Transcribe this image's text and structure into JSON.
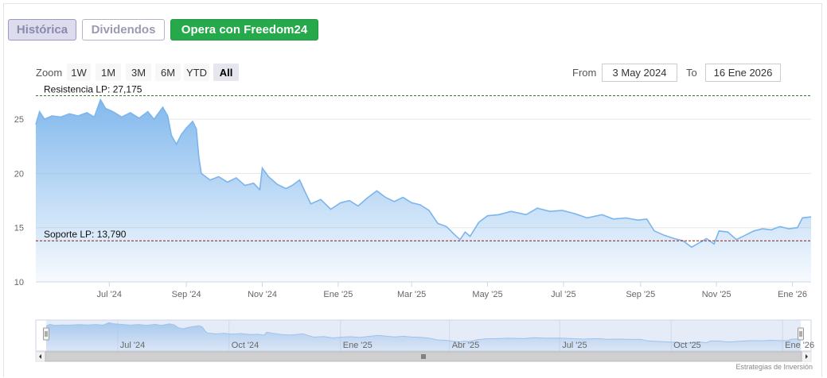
{
  "buttons": {
    "historica": "Histórica",
    "dividendos": "Dividendos",
    "opera": "Opera con Freedom24"
  },
  "zoom": {
    "label": "Zoom",
    "options": [
      "1W",
      "1M",
      "3M",
      "6M",
      "YTD",
      "All"
    ],
    "active": "All"
  },
  "range": {
    "from_label": "From",
    "from_value": "3 May 2024",
    "to_label": "To",
    "to_value": "16 Ene 2026"
  },
  "credits": "Estrategias de Inversión",
  "colors": {
    "line": "#7cb5ec",
    "resistance": "#2e7d32",
    "support": "#8b1a1a",
    "navigator_mask": "#c8d4ee"
  },
  "chart_data": {
    "type": "area",
    "x_start": "2024-05-03",
    "x_end": "2026-01-16",
    "ylim": [
      10,
      27.5
    ],
    "y_ticks": [
      10,
      15,
      20,
      25
    ],
    "x_tick_labels": [
      "Jul '24",
      "Sep '24",
      "Nov '24",
      "Ene '25",
      "Mar '25",
      "May '25",
      "Jul '25",
      "Sep '25",
      "Nov '25",
      "Ene '26"
    ],
    "x_tick_dates": [
      "2024-07-01",
      "2024-09-01",
      "2024-11-01",
      "2025-01-01",
      "2025-03-01",
      "2025-05-01",
      "2025-07-01",
      "2025-09-01",
      "2025-11-01",
      "2026-01-01"
    ],
    "navigator_labels": [
      "Jul '24",
      "Oct '24",
      "Ene '25",
      "Abr '25",
      "Jul '25",
      "Oct '25",
      "Ene '26"
    ],
    "navigator_dates": [
      "2024-07-01",
      "2024-10-01",
      "2025-01-01",
      "2025-04-01",
      "2025-07-01",
      "2025-10-01",
      "2026-01-01"
    ],
    "annotations": [
      {
        "label": "Resistencia LP: 27,175",
        "value": 27.175,
        "style": "dashed-green"
      },
      {
        "label": "Soporte LP: 13,790",
        "value": 13.79,
        "style": "dashed-darkred"
      }
    ],
    "series": [
      {
        "points": [
          [
            "2024-05-03",
            24.5
          ],
          [
            "2024-05-06",
            25.7
          ],
          [
            "2024-05-10",
            25.0
          ],
          [
            "2024-05-16",
            25.3
          ],
          [
            "2024-05-23",
            25.2
          ],
          [
            "2024-05-30",
            25.5
          ],
          [
            "2024-06-06",
            25.3
          ],
          [
            "2024-06-13",
            25.6
          ],
          [
            "2024-06-19",
            25.2
          ],
          [
            "2024-06-24",
            26.8
          ],
          [
            "2024-06-28",
            26.0
          ],
          [
            "2024-07-04",
            25.7
          ],
          [
            "2024-07-11",
            25.2
          ],
          [
            "2024-07-18",
            25.6
          ],
          [
            "2024-07-25",
            25.1
          ],
          [
            "2024-08-01",
            25.7
          ],
          [
            "2024-08-06",
            25.0
          ],
          [
            "2024-08-13",
            26.1
          ],
          [
            "2024-08-17",
            25.3
          ],
          [
            "2024-08-20",
            23.5
          ],
          [
            "2024-08-24",
            22.7
          ],
          [
            "2024-08-28",
            23.6
          ],
          [
            "2024-09-01",
            24.2
          ],
          [
            "2024-09-06",
            24.8
          ],
          [
            "2024-09-09",
            24.1
          ],
          [
            "2024-09-11",
            21.5
          ],
          [
            "2024-09-13",
            20.0
          ],
          [
            "2024-09-20",
            19.4
          ],
          [
            "2024-09-27",
            19.7
          ],
          [
            "2024-10-04",
            19.2
          ],
          [
            "2024-10-11",
            19.6
          ],
          [
            "2024-10-18",
            18.9
          ],
          [
            "2024-10-25",
            19.1
          ],
          [
            "2024-10-30",
            18.5
          ],
          [
            "2024-11-01",
            20.5
          ],
          [
            "2024-11-06",
            19.7
          ],
          [
            "2024-11-13",
            19.0
          ],
          [
            "2024-11-20",
            18.6
          ],
          [
            "2024-11-25",
            18.9
          ],
          [
            "2024-12-01",
            19.4
          ],
          [
            "2024-12-05",
            18.4
          ],
          [
            "2024-12-10",
            17.2
          ],
          [
            "2024-12-18",
            17.6
          ],
          [
            "2024-12-26",
            16.7
          ],
          [
            "2025-01-03",
            17.3
          ],
          [
            "2025-01-10",
            17.5
          ],
          [
            "2025-01-17",
            17.0
          ],
          [
            "2025-01-24",
            17.7
          ],
          [
            "2025-02-01",
            18.4
          ],
          [
            "2025-02-08",
            17.8
          ],
          [
            "2025-02-15",
            17.4
          ],
          [
            "2025-02-22",
            17.8
          ],
          [
            "2025-03-01",
            17.3
          ],
          [
            "2025-03-08",
            17.1
          ],
          [
            "2025-03-15",
            16.6
          ],
          [
            "2025-03-22",
            15.4
          ],
          [
            "2025-03-29",
            15.1
          ],
          [
            "2025-04-05",
            14.3
          ],
          [
            "2025-04-09",
            13.9
          ],
          [
            "2025-04-13",
            14.6
          ],
          [
            "2025-04-17",
            14.2
          ],
          [
            "2025-04-24",
            15.5
          ],
          [
            "2025-05-01",
            16.1
          ],
          [
            "2025-05-10",
            16.2
          ],
          [
            "2025-05-20",
            16.5
          ],
          [
            "2025-06-01",
            16.2
          ],
          [
            "2025-06-10",
            16.8
          ],
          [
            "2025-06-20",
            16.5
          ],
          [
            "2025-06-30",
            16.6
          ],
          [
            "2025-07-10",
            16.3
          ],
          [
            "2025-07-20",
            15.9
          ],
          [
            "2025-08-01",
            16.2
          ],
          [
            "2025-08-10",
            15.8
          ],
          [
            "2025-08-20",
            15.9
          ],
          [
            "2025-08-30",
            15.7
          ],
          [
            "2025-09-06",
            15.8
          ],
          [
            "2025-09-12",
            14.7
          ],
          [
            "2025-09-20",
            14.3
          ],
          [
            "2025-09-28",
            14.0
          ],
          [
            "2025-10-05",
            13.8
          ],
          [
            "2025-10-12",
            13.2
          ],
          [
            "2025-10-18",
            13.6
          ],
          [
            "2025-10-24",
            14.0
          ],
          [
            "2025-10-30",
            13.5
          ],
          [
            "2025-11-03",
            14.7
          ],
          [
            "2025-11-10",
            14.6
          ],
          [
            "2025-11-17",
            13.9
          ],
          [
            "2025-11-24",
            14.3
          ],
          [
            "2025-12-01",
            14.7
          ],
          [
            "2025-12-08",
            14.9
          ],
          [
            "2025-12-15",
            14.8
          ],
          [
            "2025-12-22",
            15.1
          ],
          [
            "2025-12-29",
            14.9
          ],
          [
            "2026-01-05",
            15.0
          ],
          [
            "2026-01-09",
            15.9
          ],
          [
            "2026-01-16",
            16.0
          ]
        ]
      }
    ]
  }
}
